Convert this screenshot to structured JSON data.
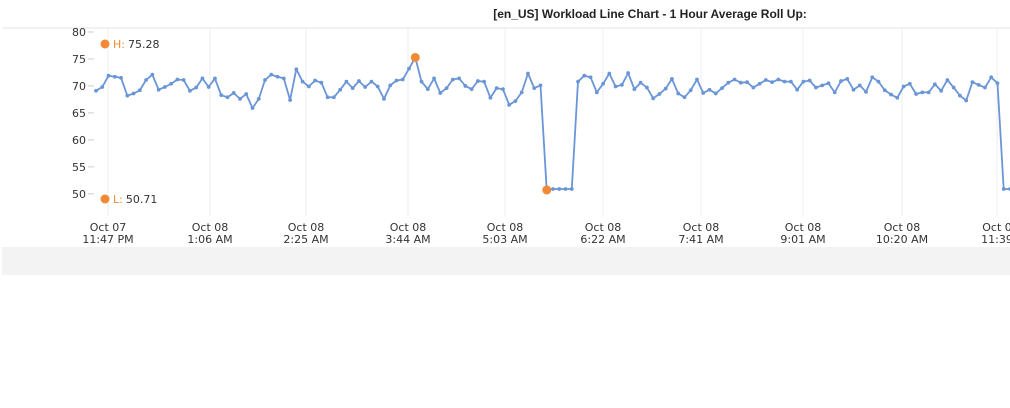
{
  "chart_data": {
    "type": "line",
    "title": "[en_US] Workload Line Chart - 1 Hour Average Roll Up:",
    "ylim": [
      47,
      80
    ],
    "yticks": [
      50,
      55,
      60,
      65,
      70,
      75,
      80
    ],
    "grid": true,
    "color": "#6a95d7",
    "marker_color": "#f28a35",
    "x_tick_labels": [
      {
        "date": "Oct 07",
        "time": "11:47 PM"
      },
      {
        "date": "Oct 08",
        "time": "1:06 AM"
      },
      {
        "date": "Oct 08",
        "time": "2:25 AM"
      },
      {
        "date": "Oct 08",
        "time": "3:44 AM"
      },
      {
        "date": "Oct 08",
        "time": "5:03 AM"
      },
      {
        "date": "Oct 08",
        "time": "6:22 AM"
      },
      {
        "date": "Oct 08",
        "time": "7:41 AM"
      },
      {
        "date": "Oct 08",
        "time": "9:01 AM"
      },
      {
        "date": "Oct 08",
        "time": "10:20 AM"
      },
      {
        "date": "Oct 0",
        "time": "11:39"
      }
    ],
    "series": [
      {
        "values": [
          69.1,
          69.8,
          71.9,
          71.7,
          71.5,
          68.2,
          68.6,
          69.2,
          71.1,
          72.1,
          69.3,
          69.8,
          70.4,
          71.2,
          71.1,
          69.1,
          69.7,
          71.4,
          69.8,
          71.4,
          68.3,
          67.9,
          68.7,
          67.6,
          68.5,
          65.9,
          67.6,
          71.1,
          72.1,
          71.7,
          71.4,
          67.4,
          73.1,
          70.8,
          69.9,
          71.0,
          70.6,
          67.9,
          67.9,
          69.3,
          70.8,
          69.6,
          70.9,
          69.8,
          70.8,
          69.9,
          67.6,
          70.1,
          71.0,
          71.2,
          73.2,
          75.28,
          70.8,
          69.4,
          71.4,
          68.7,
          69.6,
          71.2,
          71.4,
          70.0,
          69.4,
          70.9,
          70.8,
          67.8,
          69.6,
          69.4,
          66.5,
          67.2,
          68.8,
          72.3,
          69.6,
          70.1,
          50.71,
          50.9,
          50.9,
          50.9,
          50.9,
          70.8,
          71.9,
          71.6,
          68.8,
          70.4,
          72.3,
          69.9,
          70.2,
          72.4,
          69.4,
          70.6,
          69.7,
          67.7,
          68.5,
          69.5,
          71.3,
          68.6,
          67.9,
          69.2,
          71.2,
          68.7,
          69.3,
          68.6,
          69.6,
          70.6,
          71.2,
          70.6,
          70.7,
          69.7,
          70.4,
          71.1,
          70.7,
          71.2,
          70.8,
          70.8,
          69.3,
          70.8,
          71.0,
          69.7,
          70.1,
          70.5,
          68.8,
          70.9,
          71.3,
          69.3,
          70.1,
          68.9,
          71.6,
          70.8,
          69.2,
          68.4,
          67.8,
          69.9,
          70.4,
          68.5,
          68.8,
          68.8,
          70.3,
          69.1,
          71.1,
          69.7,
          68.2,
          67.3,
          70.7,
          70.2,
          69.7,
          71.6,
          70.5,
          50.9,
          50.9
        ]
      }
    ],
    "high": {
      "label": "H:",
      "value": "75.28"
    },
    "low": {
      "label": "L:",
      "value": "50.71"
    }
  }
}
